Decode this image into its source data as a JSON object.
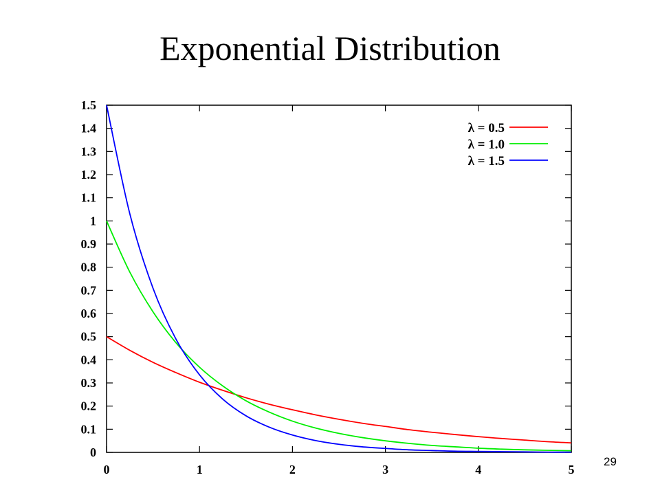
{
  "slide": {
    "title": "Exponential Distribution",
    "page_number": "29"
  },
  "chart_data": {
    "type": "line",
    "title": "",
    "xlabel": "",
    "ylabel": "",
    "xlim": [
      0,
      5
    ],
    "ylim": [
      0,
      1.5
    ],
    "x_ticks": [
      "0",
      "1",
      "2",
      "3",
      "4",
      "5"
    ],
    "y_ticks": [
      "0",
      "0.1",
      "0.2",
      "0.3",
      "0.4",
      "0.5",
      "0.6",
      "0.7",
      "0.8",
      "0.9",
      "1",
      "1.1",
      "1.2",
      "1.3",
      "1.4",
      "1.5"
    ],
    "grid": false,
    "legend_position": "top-right",
    "x": [
      0,
      0.25,
      0.5,
      0.75,
      1,
      1.25,
      1.5,
      1.75,
      2,
      2.25,
      2.5,
      2.75,
      3,
      3.25,
      3.5,
      3.75,
      4,
      4.25,
      4.5,
      4.75,
      5
    ],
    "series": [
      {
        "name": "λ = 0.5",
        "color": "#ff0000",
        "values": [
          0.5,
          0.441,
          0.389,
          0.344,
          0.303,
          0.268,
          0.236,
          0.208,
          0.184,
          0.162,
          0.143,
          0.126,
          0.112,
          0.098,
          0.087,
          0.077,
          0.068,
          0.06,
          0.053,
          0.046,
          0.041
        ]
      },
      {
        "name": "λ = 1.0",
        "color": "#00ee00",
        "values": [
          1.0,
          0.779,
          0.607,
          0.472,
          0.368,
          0.287,
          0.223,
          0.174,
          0.135,
          0.105,
          0.082,
          0.064,
          0.05,
          0.039,
          0.03,
          0.024,
          0.018,
          0.014,
          0.011,
          0.009,
          0.007
        ]
      },
      {
        "name": "λ = 1.5",
        "color": "#0000ff",
        "values": [
          1.5,
          1.031,
          0.709,
          0.487,
          0.335,
          0.23,
          0.158,
          0.109,
          0.075,
          0.051,
          0.035,
          0.024,
          0.017,
          0.011,
          0.008,
          0.005,
          0.004,
          0.003,
          0.002,
          0.001,
          0.001
        ]
      }
    ]
  }
}
